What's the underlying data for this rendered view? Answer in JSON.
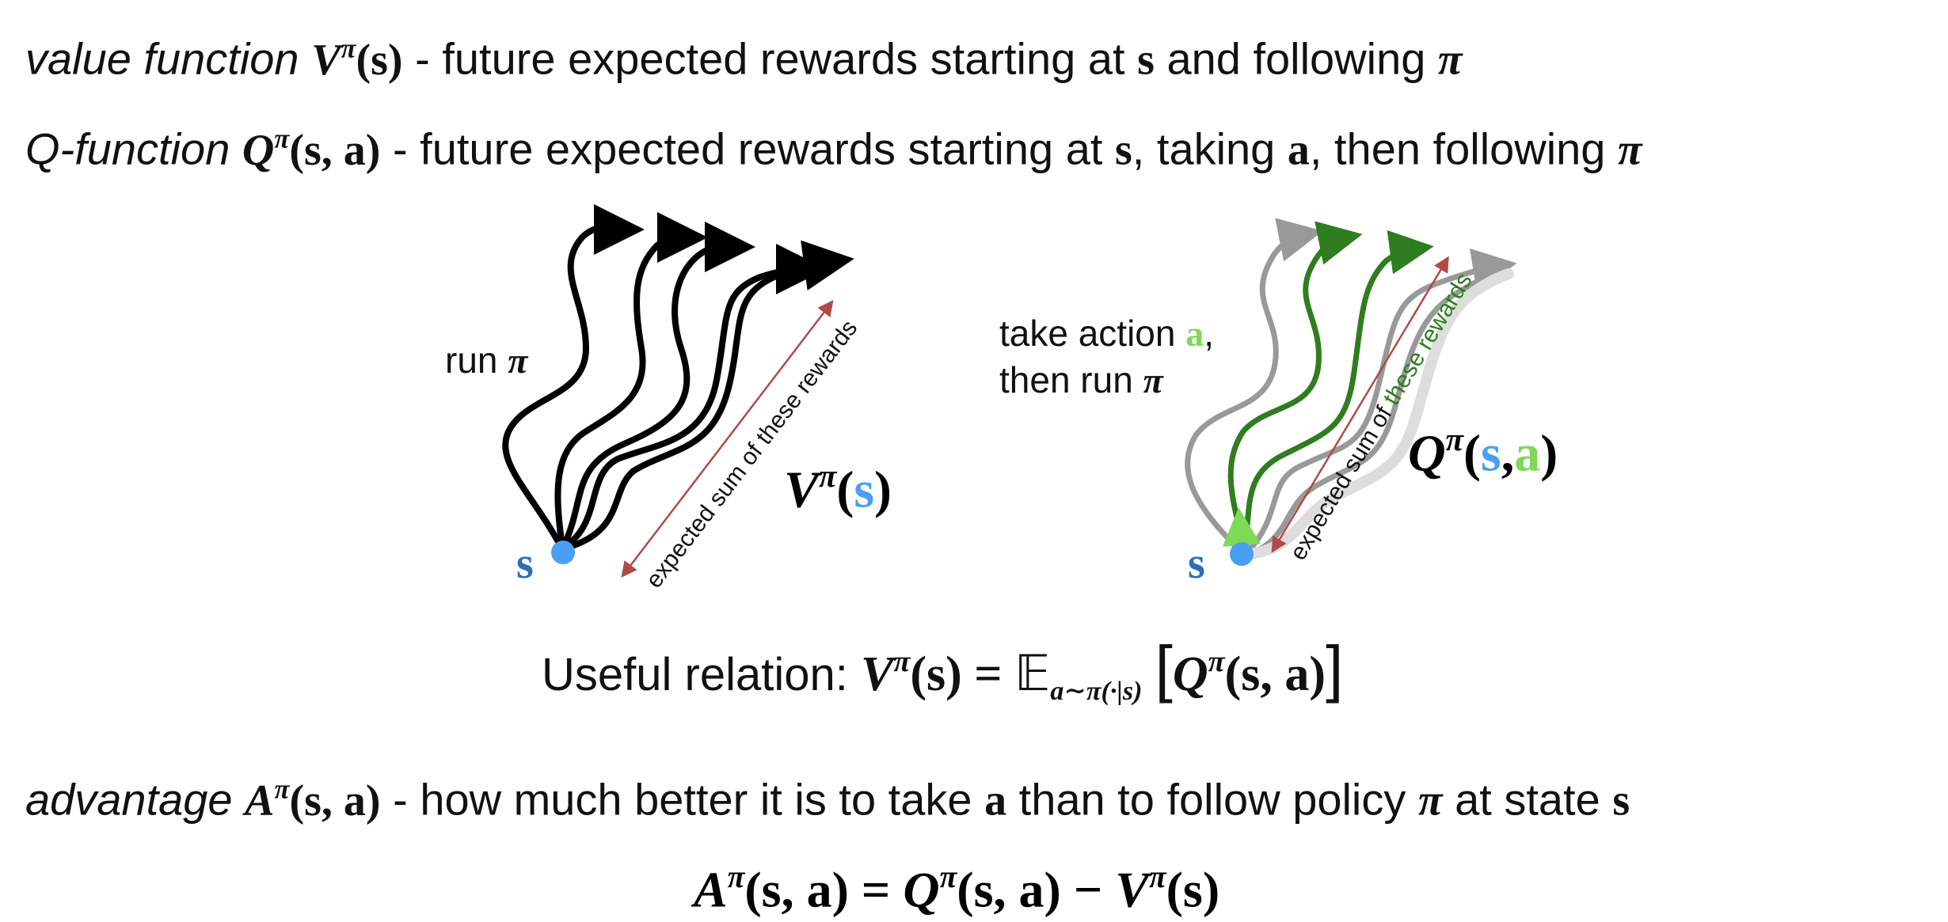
{
  "value_line": {
    "term": "value function",
    "symbol": "V",
    "sup": "π",
    "args": "(s)",
    "desc_pre": " - future expected rewards starting at ",
    "s": "s",
    "desc_mid": " and following ",
    "pi": "π"
  },
  "q_line": {
    "term": "Q-function",
    "symbol": "Q",
    "sup": "π",
    "args": "(s, a)",
    "desc_pre": " - future expected rewards starting at ",
    "s": "s",
    "desc_mid1": ", taking ",
    "a": "a",
    "desc_mid2": ", then following ",
    "pi": "π"
  },
  "left_diagram": {
    "run_label": "run ",
    "pi": "π",
    "state_label": "s",
    "arrow_label": "expected sum of these rewards",
    "value_symbol": "V",
    "value_sup": "π",
    "value_open": "(",
    "value_s": "s",
    "value_close": ")",
    "colors": {
      "paths": "#000000",
      "state": "#4a9ff5",
      "state_label": "#2f6eb5",
      "arrow": "#b04a4a"
    }
  },
  "right_diagram": {
    "action_line1_pre": "take action ",
    "action_a": "a",
    "action_line1_post": ",",
    "action_line2_pre": "then run ",
    "action_pi": "π",
    "state_label": "s",
    "arrow_label_prefix": "expected sum of ",
    "arrow_label_highlight": "these rewards",
    "q_symbol": "Q",
    "q_sup": "π",
    "q_open": "(",
    "q_s": "s",
    "q_comma": ",",
    "q_a": "a",
    "q_close": ")",
    "colors": {
      "gray_paths": "#999999",
      "green_paths": "#2e7d1f",
      "action": "#7ed957",
      "state": "#4a9ff5",
      "arrow": "#b04a4a"
    }
  },
  "relation": {
    "label": "Useful relation: ",
    "lhs_symbol": "V",
    "lhs_sup": "π",
    "lhs_args": "(s)",
    "eq": " = ",
    "expect": "𝔼",
    "expect_sub": "a∼π(·|s)",
    "rhs_open": "[",
    "rhs_symbol": "Q",
    "rhs_sup": "π",
    "rhs_args": "(s, a)",
    "rhs_close": "]"
  },
  "advantage_line": {
    "term": "advantage",
    "symbol": "A",
    "sup": "π",
    "args": "(s, a)",
    "desc_pre": " - how much better it is to take ",
    "a": "a",
    "desc_mid1": " than to follow policy ",
    "pi": "π",
    "desc_mid2": " at state ",
    "s": "s"
  },
  "advantage_eq": {
    "a_symbol": "A",
    "a_sup": "π",
    "a_args": "(s, a)",
    "eq": " = ",
    "q_symbol": "Q",
    "q_sup": "π",
    "q_args": "(s, a)",
    "minus": " − ",
    "v_symbol": "V",
    "v_sup": "π",
    "v_args": "(s)"
  }
}
